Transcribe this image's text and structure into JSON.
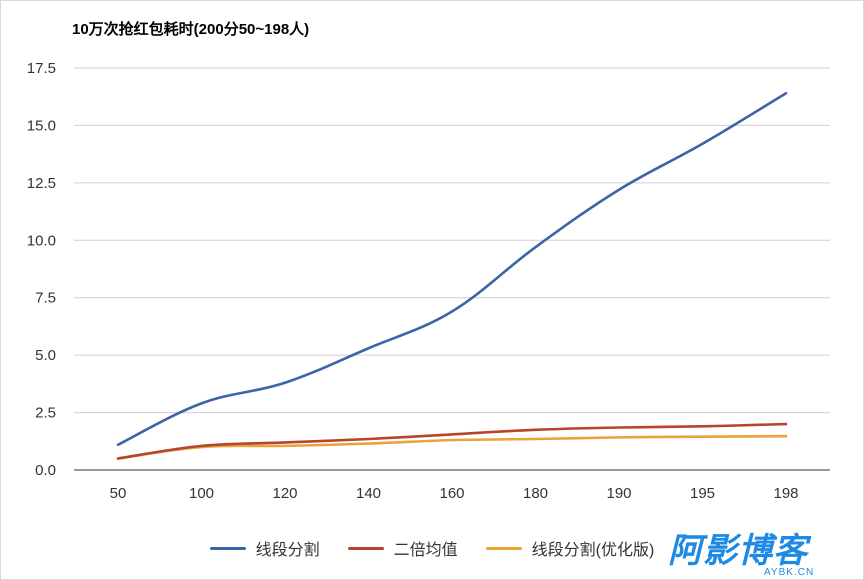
{
  "chart_data": {
    "type": "line",
    "title": "10万次抢红包耗时(200分50~198人)",
    "xlabel": "",
    "ylabel": "",
    "categories": [
      "50",
      "100",
      "120",
      "140",
      "160",
      "180",
      "190",
      "195",
      "198"
    ],
    "ylim": [
      0,
      17.5
    ],
    "yticks": [
      "0.0",
      "2.5",
      "5.0",
      "7.5",
      "10.0",
      "12.5",
      "15.0",
      "17.5"
    ],
    "grid": true,
    "legend_position": "bottom",
    "series": [
      {
        "name": "线段分割",
        "color": "#3c64a6",
        "values": [
          1.1,
          2.9,
          3.8,
          5.3,
          6.9,
          9.7,
          12.2,
          14.2,
          16.4
        ]
      },
      {
        "name": "二倍均值",
        "color": "#b5462b",
        "values": [
          0.5,
          1.05,
          1.2,
          1.35,
          1.55,
          1.75,
          1.85,
          1.9,
          2.0
        ]
      },
      {
        "name": "线段分割(优化版)",
        "color": "#e8a33a",
        "values": [
          0.5,
          1.0,
          1.05,
          1.15,
          1.3,
          1.35,
          1.42,
          1.45,
          1.47
        ]
      }
    ]
  },
  "watermark": {
    "main": "阿影博客",
    "sub": "AYBK.CN"
  }
}
